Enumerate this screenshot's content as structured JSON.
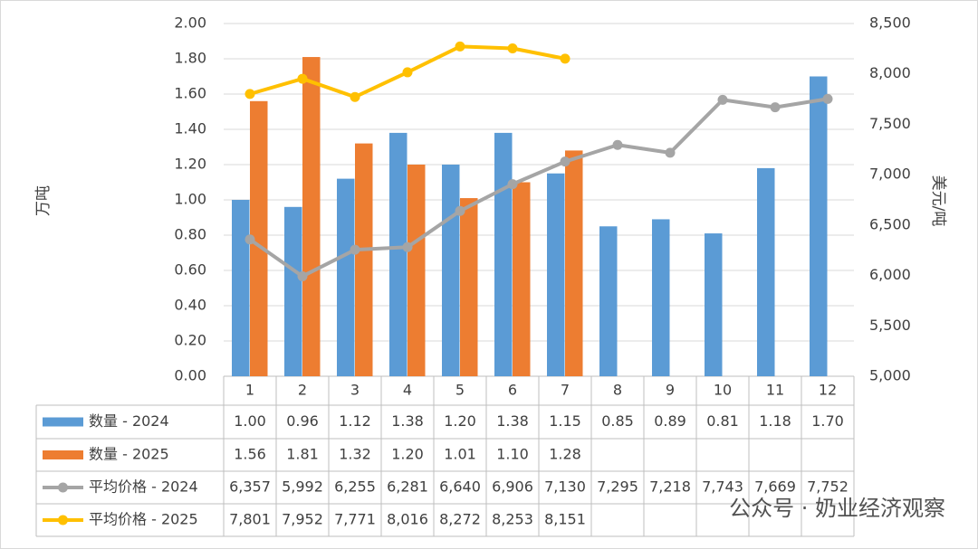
{
  "chart_data": {
    "type": "bar",
    "categories": [
      "1",
      "2",
      "3",
      "4",
      "5",
      "6",
      "7",
      "8",
      "9",
      "10",
      "11",
      "12"
    ],
    "series": [
      {
        "name": "数量 - 2024",
        "type": "bar",
        "color": "#5b9bd5",
        "values": [
          1.0,
          0.96,
          1.12,
          1.38,
          1.2,
          1.38,
          1.15,
          0.85,
          0.89,
          0.81,
          1.18,
          1.7
        ],
        "value_labels": [
          "1.00",
          "0.96",
          "1.12",
          "1.38",
          "1.20",
          "1.38",
          "1.15",
          "0.85",
          "0.89",
          "0.81",
          "1.18",
          "1.70"
        ]
      },
      {
        "name": "数量 - 2025",
        "type": "bar",
        "color": "#ed7d31",
        "values": [
          1.56,
          1.81,
          1.32,
          1.2,
          1.01,
          1.1,
          1.28,
          null,
          null,
          null,
          null,
          null
        ],
        "value_labels": [
          "1.56",
          "1.81",
          "1.32",
          "1.20",
          "1.01",
          "1.10",
          "1.28",
          null,
          null,
          null,
          null,
          null
        ]
      },
      {
        "name": "平均价格 - 2024",
        "type": "line",
        "axis": "y2",
        "color": "#a5a5a5",
        "values": [
          6357,
          5992,
          6255,
          6281,
          6640,
          6906,
          7130,
          7295,
          7218,
          7743,
          7669,
          7752
        ],
        "value_labels": [
          "6,357",
          "5,992",
          "6,255",
          "6,281",
          "6,640",
          "6,906",
          "7,130",
          "7,295",
          "7,218",
          "7,743",
          "7,669",
          "7,752"
        ]
      },
      {
        "name": "平均价格 - 2025",
        "type": "line",
        "axis": "y2",
        "color": "#ffc000",
        "values": [
          7801,
          7952,
          7771,
          8016,
          8272,
          8253,
          8151,
          null,
          null,
          null,
          null,
          null
        ],
        "value_labels": [
          "7,801",
          "7,952",
          "7,771",
          "8,016",
          "8,272",
          "8,253",
          "8,151",
          null,
          null,
          null,
          null,
          null
        ]
      }
    ],
    "y_label": "万吨",
    "y2_label": "美元/吨",
    "ylim": [
      0,
      2
    ],
    "yticks": [
      {
        "value": 0,
        "label": "0.00"
      },
      {
        "value": 0.2,
        "label": "0.20"
      },
      {
        "value": 0.4,
        "label": "0.40"
      },
      {
        "value": 0.6,
        "label": "0.60"
      },
      {
        "value": 0.8,
        "label": "0.80"
      },
      {
        "value": 1,
        "label": "1.00"
      },
      {
        "value": 1.2,
        "label": "1.20"
      },
      {
        "value": 1.4,
        "label": "1.40"
      },
      {
        "value": 1.6,
        "label": "1.60"
      },
      {
        "value": 1.8,
        "label": "1.80"
      },
      {
        "value": 2,
        "label": "2.00"
      }
    ],
    "y2lim": [
      5000,
      8500
    ],
    "y2ticks": [
      {
        "value": 5000,
        "label": "5,000"
      },
      {
        "value": 5500,
        "label": "5,500"
      },
      {
        "value": 6000,
        "label": "6,000"
      },
      {
        "value": 6500,
        "label": "6,500"
      },
      {
        "value": 7000,
        "label": "7,000"
      },
      {
        "value": 7500,
        "label": "7,500"
      },
      {
        "value": 8000,
        "label": "8,000"
      },
      {
        "value": 8500,
        "label": "8,500"
      }
    ],
    "grid": true,
    "watermark": "公众号 · 奶业经济观察"
  }
}
